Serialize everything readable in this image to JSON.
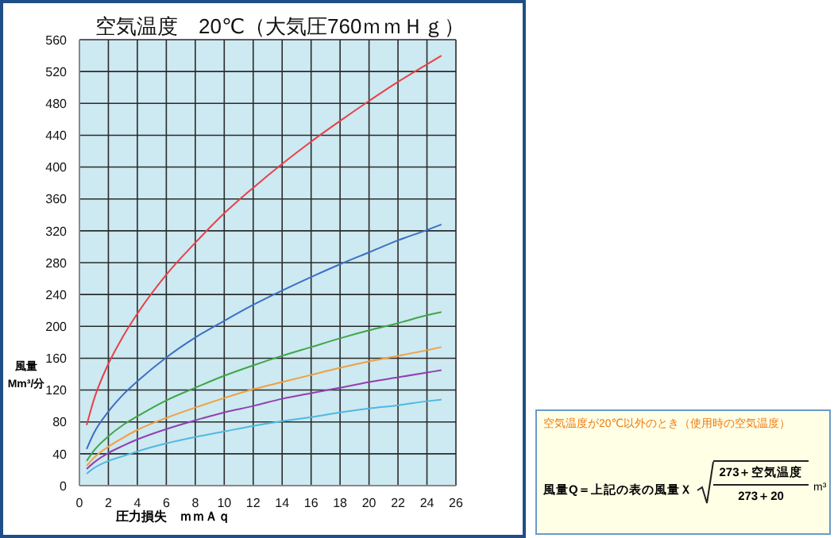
{
  "chart_data": {
    "type": "line",
    "title": "空気温度　20℃（大気圧760ｍｍＨｇ）",
    "xlabel": "圧力損失　ｍｍＡｑ",
    "ylabel": "風量 Mm³/分",
    "x": [
      0.5,
      1,
      2,
      3,
      4,
      6,
      8,
      10,
      12,
      14,
      16,
      18,
      20,
      22,
      24,
      25
    ],
    "series": [
      {
        "color": "#e8404a",
        "values": [
          76,
          108,
          153,
          187,
          216,
          265,
          305,
          342,
          374,
          404,
          432,
          458,
          483,
          507,
          529,
          540
        ]
      },
      {
        "color": "#3a6fc4",
        "values": [
          46,
          66,
          93,
          114,
          131,
          161,
          186,
          207,
          227,
          245,
          262,
          278,
          293,
          308,
          321,
          328
        ]
      },
      {
        "color": "#3fa64a",
        "values": [
          31,
          44,
          62,
          76,
          87,
          107,
          123,
          138,
          151,
          163,
          174,
          185,
          195,
          204,
          214,
          218
        ]
      },
      {
        "color": "#f0a040",
        "values": [
          25,
          35,
          49,
          60,
          70,
          85,
          98,
          110,
          121,
          130,
          139,
          148,
          156,
          163,
          170,
          174
        ]
      },
      {
        "color": "#9040b0",
        "values": [
          21,
          29,
          41,
          50,
          58,
          71,
          82,
          92,
          100,
          109,
          116,
          123,
          130,
          136,
          142,
          145
        ]
      },
      {
        "color": "#50b8e0",
        "values": [
          15,
          22,
          31,
          37,
          43,
          53,
          61,
          68,
          75,
          81,
          86,
          92,
          97,
          101,
          106,
          108
        ]
      }
    ],
    "xlim": [
      0,
      26
    ],
    "xticks": [
      0,
      2,
      4,
      6,
      8,
      10,
      12,
      14,
      16,
      18,
      20,
      22,
      24,
      26
    ],
    "ylim": [
      0,
      560
    ],
    "yticks": [
      0,
      40,
      80,
      120,
      160,
      200,
      240,
      280,
      320,
      360,
      400,
      440,
      480,
      520,
      560
    ],
    "grid": true,
    "annotations": [
      "空気温度が20℃以外のとき（使用時の空気温度）",
      "風量Q＝上記の表の風量Ｘ",
      "273＋空気温度",
      "273＋20",
      "m³"
    ]
  }
}
